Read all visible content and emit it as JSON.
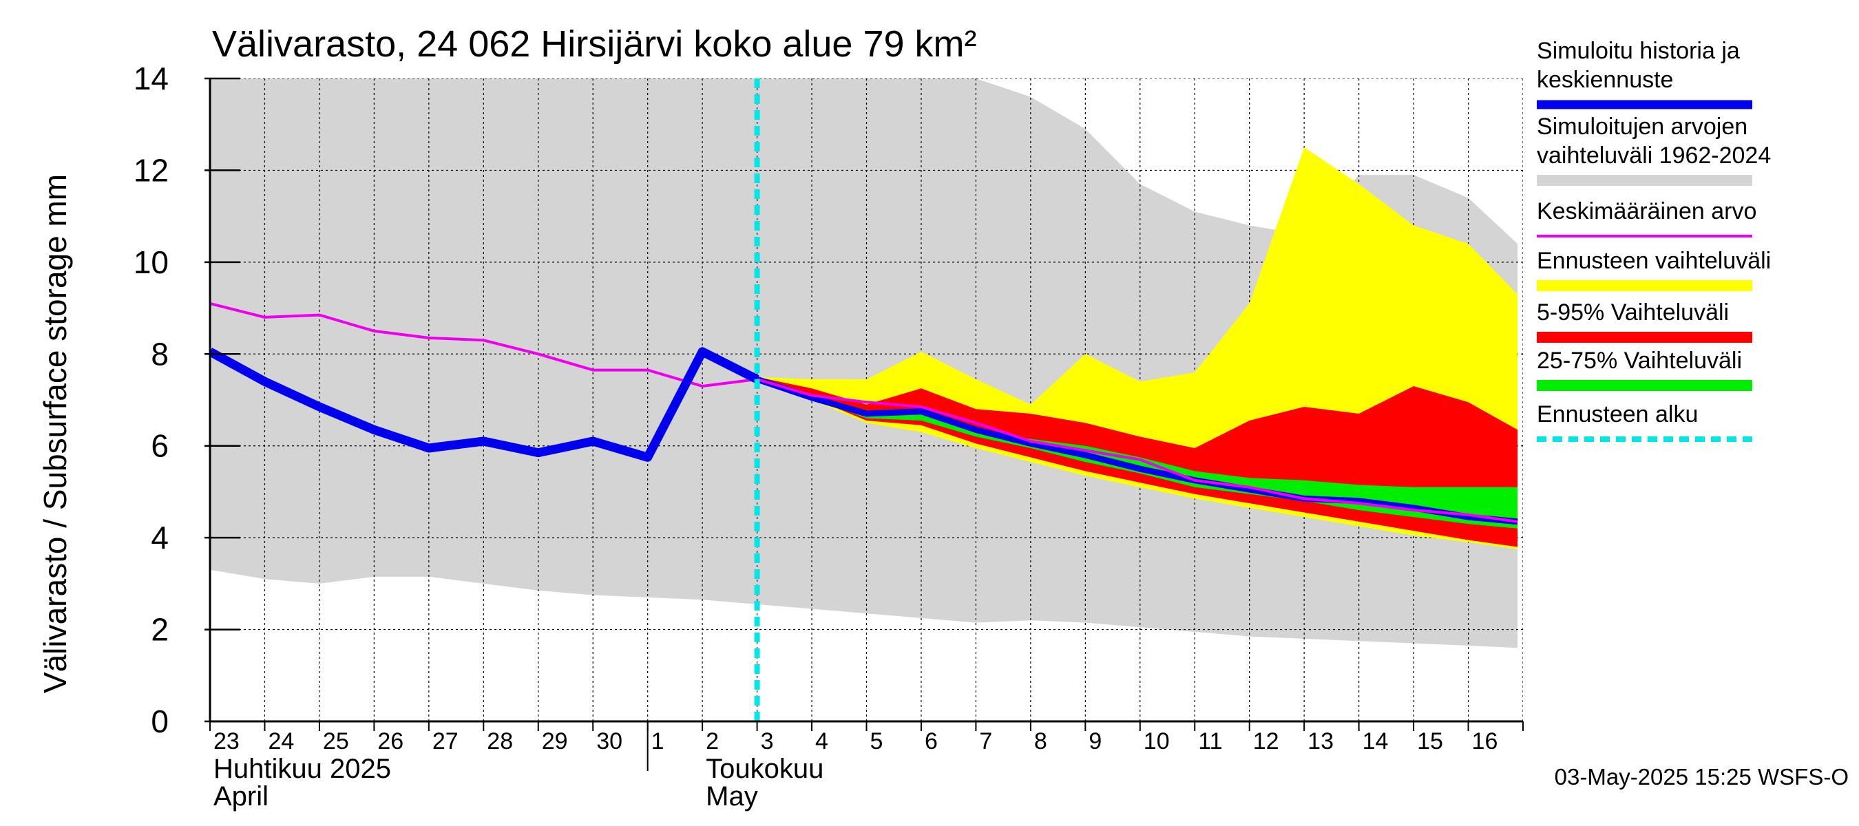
{
  "chart_data": {
    "type": "area",
    "title": "Välivarasto, 24 062 Hirsijärvi koko alue 79 km²",
    "ylabel": "Välivarasto / Subsurface storage  mm",
    "ylim": [
      0,
      14
    ],
    "y_ticks": [
      "0",
      "2",
      "4",
      "6",
      "8",
      "10",
      "12",
      "14"
    ],
    "x_days": [
      "23",
      "24",
      "25",
      "26",
      "27",
      "28",
      "29",
      "30",
      "1",
      "2",
      "3",
      "4",
      "5",
      "6",
      "7",
      "8",
      "9",
      "10",
      "11",
      "12",
      "13",
      "14",
      "15",
      "16"
    ],
    "month_labels": [
      {
        "fi": "Huhtikuu  2025",
        "en": "April"
      },
      {
        "fi": "Toukokuu",
        "en": "May"
      }
    ],
    "grid": true,
    "legend_position": "right",
    "timestamp": "03-May-2025 15:25 WSFS-O",
    "colors": {
      "history_range": "#d4d4d4",
      "forecast_range": "#ffff00",
      "p5_95": "#ff0000",
      "p25_75": "#00ee00",
      "simulated": "#0000ee",
      "mean": "#ee00ee",
      "forecast_start": "#00e5e5"
    },
    "legend": [
      {
        "label": "Simuloitu historia ja keskiennuste",
        "lines": [
          "Simuloitu historia ja",
          "keskiennuste"
        ],
        "color": "#0000ee",
        "style": "thick"
      },
      {
        "label": "Simuloitujen arvojen vaihteluväli 1962-2024",
        "lines": [
          "Simuloitujen arvojen",
          "vaihteluväli 1962-2024"
        ],
        "color": "#d4d4d4",
        "style": "band"
      },
      {
        "label": "Keskimääräinen arvo",
        "lines": [
          "Keskimääräinen arvo"
        ],
        "color": "#ee00ee",
        "style": "line"
      },
      {
        "label": "Ennusteen vaihteluväli",
        "lines": [
          "Ennusteen vaihteluväli"
        ],
        "color": "#ffff00",
        "style": "band"
      },
      {
        "label": "5-95% Vaihteluväli",
        "lines": [
          "5-95% Vaihteluväli"
        ],
        "color": "#ff0000",
        "style": "band"
      },
      {
        "label": "25-75% Vaihteluväli",
        "lines": [
          "25-75% Vaihteluväli"
        ],
        "color": "#00ee00",
        "style": "band"
      },
      {
        "label": "Ennusteen alku",
        "lines": [
          "Ennusteen alku"
        ],
        "color": "#00e5e5",
        "style": "dashed"
      }
    ],
    "history_range": {
      "x": [
        0,
        1,
        2,
        3,
        4,
        5,
        6,
        7,
        8,
        9,
        10,
        11,
        12,
        13,
        14,
        15,
        16,
        17,
        18,
        19,
        20,
        21,
        22,
        23,
        23.9
      ],
      "min": [
        3.3,
        3.1,
        3.0,
        3.15,
        3.15,
        3.0,
        2.85,
        2.75,
        2.7,
        2.65,
        2.55,
        2.45,
        2.35,
        2.25,
        2.15,
        2.2,
        2.15,
        2.05,
        1.95,
        1.85,
        1.8,
        1.75,
        1.7,
        1.65,
        1.6
      ],
      "max": [
        14,
        14,
        14,
        14,
        14,
        14,
        14,
        14,
        14,
        14,
        14,
        14,
        14,
        14,
        14,
        13.6,
        12.9,
        11.7,
        11.1,
        10.8,
        10.6,
        11.9,
        11.9,
        11.4,
        10.4
      ]
    },
    "mean": {
      "x": [
        0,
        1,
        2,
        3,
        4,
        5,
        6,
        7,
        8,
        9,
        10,
        11,
        12,
        13,
        14,
        15,
        16,
        17,
        18,
        19,
        20,
        21,
        22,
        23,
        23.9
      ],
      "values": [
        9.1,
        8.8,
        8.85,
        8.5,
        8.35,
        8.3,
        8.0,
        7.65,
        7.65,
        7.3,
        7.45,
        7.1,
        6.95,
        6.85,
        6.5,
        6.1,
        5.9,
        5.7,
        5.25,
        5.1,
        4.85,
        4.75,
        4.6,
        4.5,
        4.35
      ]
    },
    "simulated_history": {
      "x": [
        0,
        1,
        2,
        3,
        4,
        5,
        6,
        7,
        8,
        9,
        10
      ],
      "values": [
        8.05,
        7.4,
        6.85,
        6.35,
        5.95,
        6.1,
        5.85,
        6.1,
        5.75,
        8.05,
        7.45
      ]
    },
    "forecast": {
      "x": [
        10,
        11,
        12,
        13,
        14,
        15,
        16,
        17,
        18,
        19,
        20,
        21,
        22,
        23,
        23.9
      ],
      "range_min": [
        7.45,
        7.0,
        6.5,
        6.3,
        5.95,
        5.65,
        5.35,
        5.1,
        4.85,
        4.65,
        4.45,
        4.25,
        4.05,
        3.9,
        3.75
      ],
      "range_max": [
        7.5,
        7.45,
        7.45,
        8.05,
        7.45,
        6.9,
        8.0,
        7.4,
        7.6,
        9.1,
        12.5,
        11.7,
        10.8,
        10.4,
        9.3
      ],
      "p5": [
        7.45,
        7.05,
        6.55,
        6.45,
        6.05,
        5.75,
        5.45,
        5.2,
        4.95,
        4.75,
        4.55,
        4.35,
        4.15,
        3.95,
        3.8
      ],
      "p95": [
        7.5,
        7.25,
        6.9,
        7.25,
        6.8,
        6.7,
        6.5,
        6.2,
        5.95,
        6.55,
        6.85,
        6.7,
        7.3,
        6.95,
        6.35
      ],
      "p25": [
        7.45,
        7.05,
        6.6,
        6.55,
        6.2,
        5.95,
        5.65,
        5.4,
        5.1,
        4.95,
        4.8,
        4.6,
        4.45,
        4.3,
        4.2
      ],
      "p75": [
        7.45,
        7.1,
        6.7,
        6.75,
        6.35,
        6.15,
        6.0,
        5.75,
        5.45,
        5.3,
        5.25,
        5.15,
        5.1,
        5.1,
        5.1
      ],
      "median": [
        7.45,
        7.05,
        6.7,
        6.75,
        6.35,
        6.05,
        5.8,
        5.5,
        5.25,
        5.05,
        4.85,
        4.8,
        4.65,
        4.45,
        4.35
      ]
    },
    "forecast_start_x": 10
  }
}
